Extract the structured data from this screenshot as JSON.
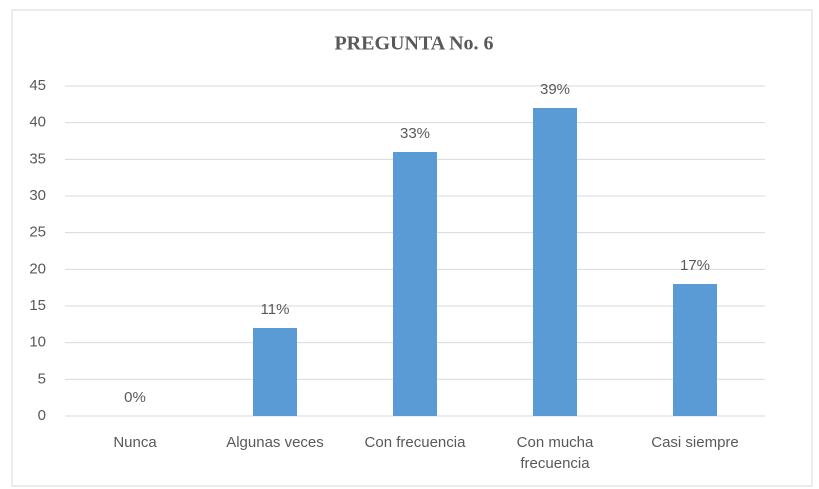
{
  "chart_data": {
    "type": "bar",
    "title": "PREGUNTA No. 6",
    "categories": [
      "Nunca",
      "Algunas veces",
      "Con frecuencia",
      "Con mucha frecuencia",
      "Casi siempre"
    ],
    "values": [
      0,
      12,
      36,
      42,
      18
    ],
    "value_labels": [
      "0%",
      "11%",
      "33%",
      "39%",
      "17%"
    ],
    "color": "#5b9bd5",
    "ylim": [
      0,
      45
    ],
    "yticks": [
      0,
      5,
      10,
      15,
      20,
      25,
      30,
      35,
      40,
      45
    ],
    "grid": true
  }
}
